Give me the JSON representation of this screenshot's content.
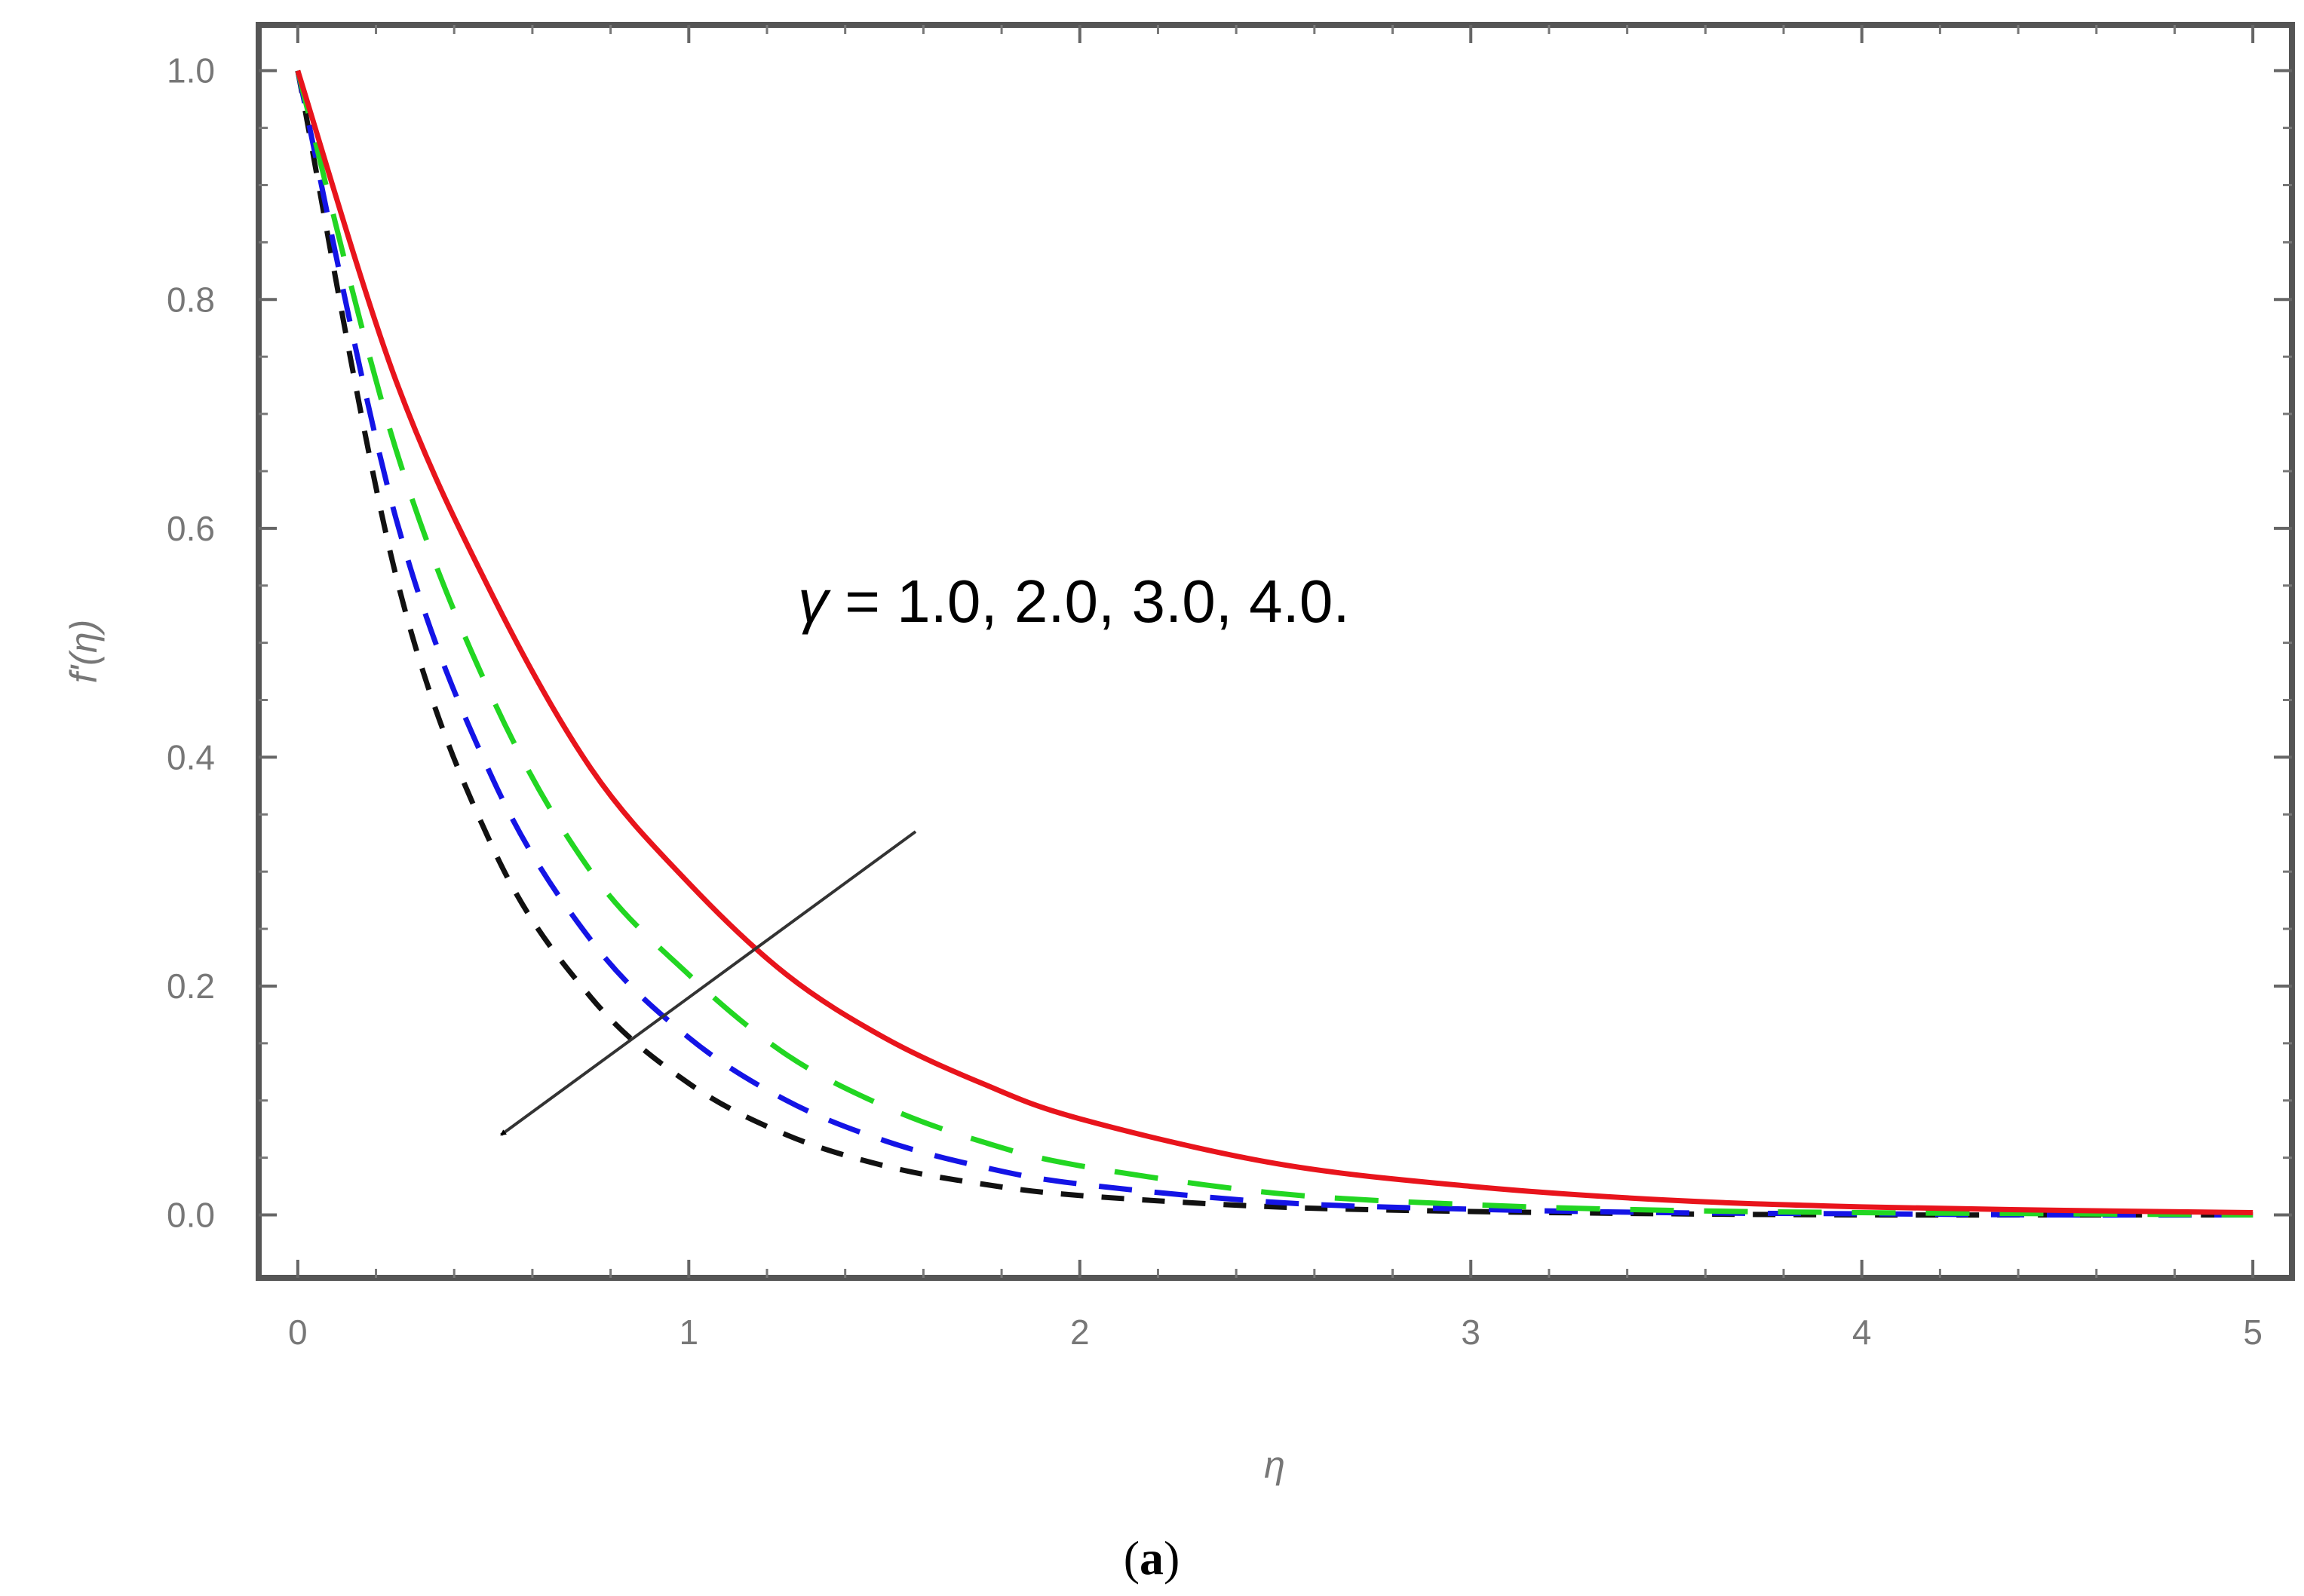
{
  "chart_data": {
    "type": "line",
    "title": "",
    "xlabel": "η",
    "ylabel": "f'(η)",
    "xlim": [
      -0.1,
      5.1
    ],
    "ylim": [
      -0.055,
      1.04
    ],
    "x_ticks": [
      0,
      1,
      2,
      3,
      4,
      5
    ],
    "x_tick_labels": [
      "0",
      "1",
      "2",
      "3",
      "4",
      "5"
    ],
    "y_ticks": [
      0.0,
      0.2,
      0.4,
      0.6,
      0.8,
      1.0
    ],
    "y_tick_labels": [
      "0.0",
      "0.2",
      "0.4",
      "0.6",
      "0.8",
      "1.0"
    ],
    "grid": false,
    "x": [
      0,
      0.25,
      0.5,
      0.75,
      1.0,
      1.25,
      1.5,
      1.75,
      2.0,
      2.5,
      3.0,
      3.5,
      4.0,
      4.5,
      5.0
    ],
    "series": [
      {
        "style": "solid",
        "color": "#e8141c",
        "values": [
          1.0,
          0.73,
          0.54,
          0.39,
          0.29,
          0.21,
          0.155,
          0.115,
          0.084,
          0.045,
          0.025,
          0.013,
          0.007,
          0.004,
          0.002
        ]
      },
      {
        "style": "long-dash",
        "color": "#22d622",
        "values": [
          1.0,
          0.67,
          0.45,
          0.3,
          0.21,
          0.14,
          0.095,
          0.064,
          0.043,
          0.019,
          0.009,
          0.004,
          0.002,
          0.001,
          0.0
        ]
      },
      {
        "style": "dash",
        "color": "#1414e6",
        "values": [
          1.0,
          0.61,
          0.38,
          0.24,
          0.155,
          0.1,
          0.065,
          0.042,
          0.027,
          0.011,
          0.005,
          0.002,
          0.001,
          0.0,
          0.0
        ]
      },
      {
        "style": "short-dash",
        "color": "#111111",
        "values": [
          1.0,
          0.56,
          0.32,
          0.19,
          0.115,
          0.07,
          0.043,
          0.027,
          0.017,
          0.007,
          0.003,
          0.001,
          0.0,
          0.0,
          0.0
        ]
      }
    ],
    "annotations": {
      "gamma_symbol": "γ",
      "gamma_text": " = 1.0, 2.0, 3.0, 4.0.",
      "arrow_from": [
        1.58,
        0.335
      ],
      "arrow_to": [
        0.52,
        0.07
      ]
    }
  },
  "caption": {
    "open": "(",
    "letter": "a",
    "close": ")"
  }
}
